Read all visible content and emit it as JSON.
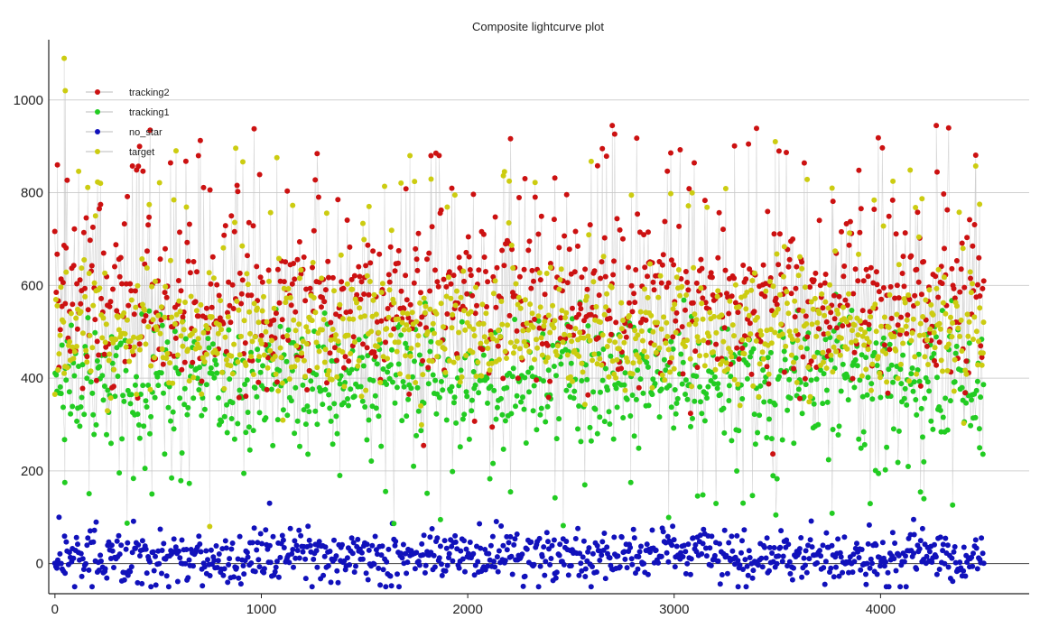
{
  "chart_data": {
    "type": "scatter",
    "title": "Composite lightcurve plot",
    "xlabel": "",
    "ylabel": "",
    "xlim": [
      -30,
      4720
    ],
    "ylim": [
      -65,
      1130
    ],
    "x_ticks": [
      0,
      1000,
      2000,
      3000,
      4000
    ],
    "y_ticks": [
      0,
      200,
      400,
      600,
      800,
      1000
    ],
    "grid": "horizontal",
    "legend_position": "top-left",
    "x_range": [
      0,
      4500
    ],
    "series": [
      {
        "name": "tracking2",
        "color": "#cc1111",
        "mean": 560,
        "sd": 85,
        "peaks_max": 945,
        "representative_points": [
          [
            12,
            860
          ],
          [
            410,
            900
          ],
          [
            695,
            880
          ],
          [
            2700,
            945
          ],
          [
            3360,
            905
          ],
          [
            4270,
            945
          ]
        ]
      },
      {
        "name": "tracking1",
        "color": "#22cc22",
        "mean": 395,
        "sd": 65,
        "peaks_min": 140,
        "representative_points": [
          [
            48,
            175
          ],
          [
            470,
            150
          ],
          [
            1380,
            190
          ],
          [
            2790,
            175
          ],
          [
            4210,
            140
          ],
          [
            4480,
            250
          ]
        ]
      },
      {
        "name": "no_star",
        "color": "#1111bb",
        "mean": 15,
        "sd": 28,
        "representative_points": [
          [
            20,
            100
          ],
          [
            1040,
            130
          ],
          [
            3310,
            -50
          ],
          [
            3930,
            -45
          ],
          [
            4160,
            95
          ]
        ]
      },
      {
        "name": "target",
        "color": "#cccc11",
        "mean": 500,
        "sd": 65,
        "peaks_max": 1090,
        "representative_points": [
          [
            45,
            1090
          ],
          [
            50,
            1020
          ],
          [
            1720,
            880
          ],
          [
            3490,
            910
          ],
          [
            750,
            80
          ],
          [
            4480,
            775
          ]
        ]
      }
    ],
    "legend_order": [
      "tracking2",
      "tracking1",
      "no_star",
      "target"
    ]
  }
}
